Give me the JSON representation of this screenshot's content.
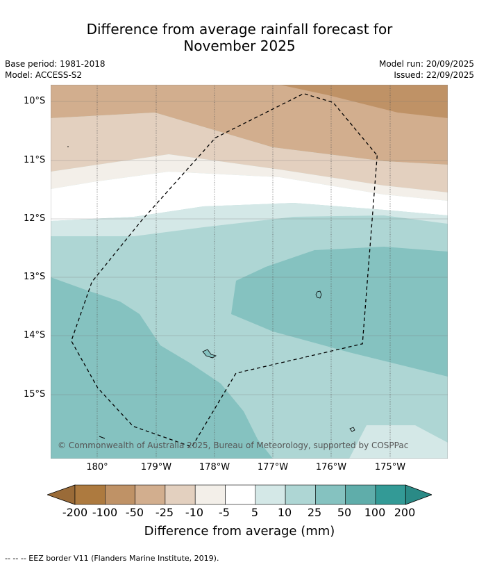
{
  "title": {
    "line1": "Difference from average rainfall forecast for",
    "line2": "November 2025"
  },
  "meta": {
    "base_period": "Base period: 1981-2018",
    "model": "Model: ACCESS-S2",
    "model_run": "Model run: 20/09/2025",
    "issued": "Issued: 22/09/2025"
  },
  "axes": {
    "lat_labels": [
      "10°S",
      "11°S",
      "12°S",
      "13°S",
      "14°S",
      "15°S"
    ],
    "lon_labels": [
      "180°",
      "179°W",
      "178°W",
      "177°W",
      "176°W",
      "175°W"
    ]
  },
  "map": {
    "copyright": "© Commonwealth of Australia 2025, Bureau of Meteorology, supported by COSPPac",
    "lat_range": [
      -16.1,
      -9.75
    ],
    "lon_range": [
      179.2,
      185.95
    ],
    "eez_border": [
      [
        184.75,
        -10.95
      ],
      [
        184.5,
        -14.15
      ],
      [
        182.35,
        -14.65
      ],
      [
        181.6,
        -15.9
      ],
      [
        180.6,
        -15.55
      ],
      [
        180.0,
        -14.9
      ],
      [
        179.55,
        -14.1
      ],
      [
        179.9,
        -13.1
      ],
      [
        180.75,
        -12.05
      ],
      [
        182.0,
        -10.65
      ],
      [
        183.5,
        -9.9
      ],
      [
        184.0,
        -10.05
      ],
      [
        184.75,
        -10.95
      ]
    ]
  },
  "colorbar": {
    "ticks": [
      "-200",
      "-100",
      "-50",
      "-25",
      "-10",
      "-5",
      "5",
      "10",
      "25",
      "50",
      "100",
      "200"
    ],
    "colors": [
      "#ad7a3f",
      "#bf9266",
      "#d2ae8e",
      "#e3d0bf",
      "#f3efe9",
      "#ffffff",
      "#d4e8e7",
      "#aed6d4",
      "#85c2c0",
      "#5fadaa",
      "#339a96"
    ],
    "extend_low": "#9a6b38",
    "extend_high": "#2a8a86",
    "label": "Difference from average (mm)"
  },
  "footer": "--  --  -- EEZ border V11 (Flanders Marine Institute, 2019)."
}
